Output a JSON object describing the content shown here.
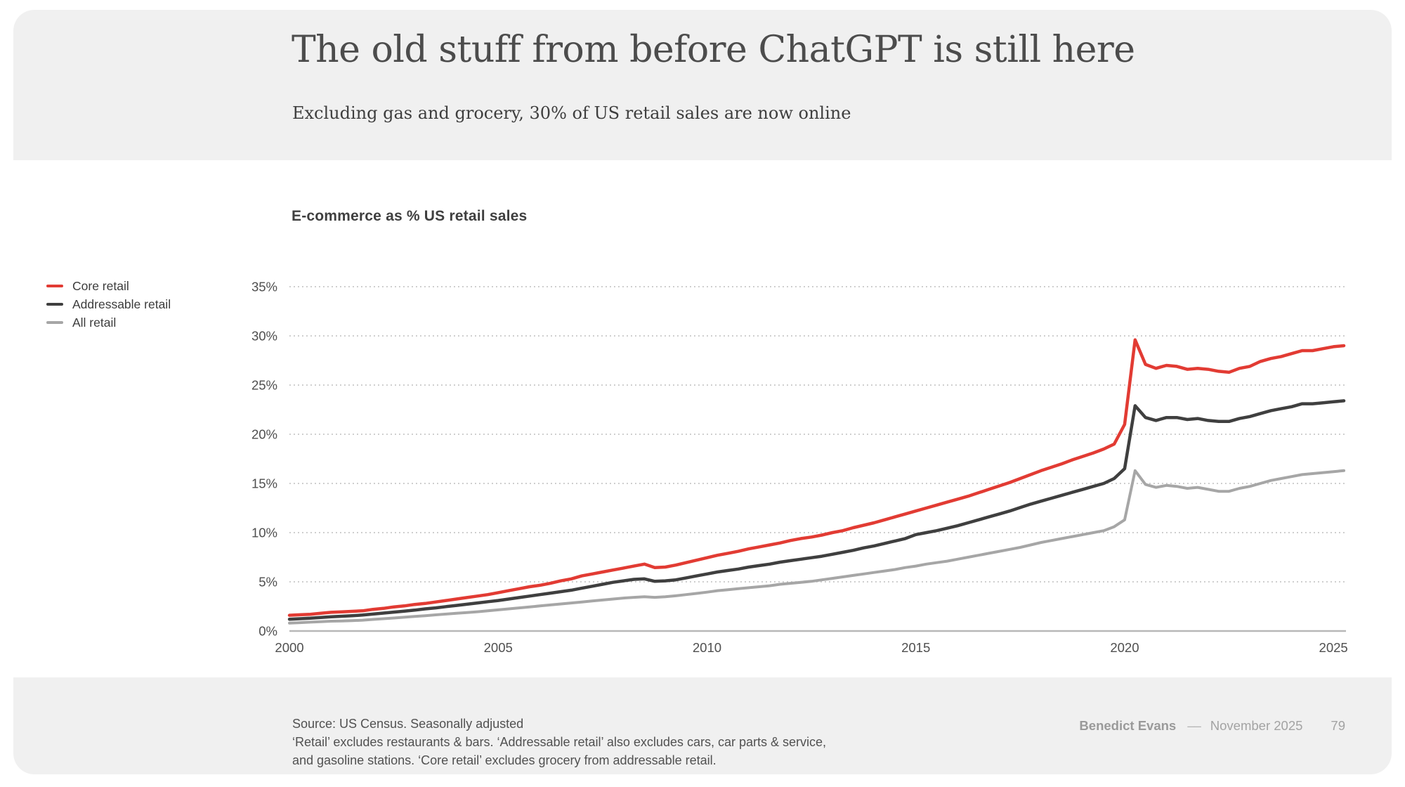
{
  "slide": {
    "title": "The old stuff from before ChatGPT is still here",
    "subtitle": "Excluding gas and grocery, 30% of US retail sales are now online"
  },
  "chart": {
    "heading": "E-commerce as % US retail sales"
  },
  "legend": {
    "items": [
      {
        "label": "Core retail",
        "color": "#e23b33"
      },
      {
        "label": "Addressable retail",
        "color": "#3f3f3f"
      },
      {
        "label": "All retail",
        "color": "#a6a6a6"
      }
    ]
  },
  "chart_data": {
    "type": "line",
    "title": "E-commerce as % US retail sales",
    "xlabel": "",
    "ylabel": "E-commerce as % US retail sales",
    "xlim": [
      2000,
      2025.25
    ],
    "ylim": [
      0,
      35
    ],
    "grid": "horizontal-dotted",
    "legend_position": "left",
    "x_ticks": [
      2000,
      2005,
      2010,
      2015,
      2020,
      2025
    ],
    "x_tick_labels": [
      "2000",
      "2005",
      "2010",
      "2015",
      "2020",
      "2025"
    ],
    "y_ticks": [
      0,
      5,
      10,
      15,
      20,
      25,
      30,
      35
    ],
    "y_tick_labels": [
      "0%",
      "5%",
      "10%",
      "15%",
      "20%",
      "25%",
      "30%",
      "35%"
    ],
    "x": [
      2000,
      2000.25,
      2000.5,
      2000.75,
      2001,
      2001.25,
      2001.5,
      2001.75,
      2002,
      2002.25,
      2002.5,
      2002.75,
      2003,
      2003.25,
      2003.5,
      2003.75,
      2004,
      2004.25,
      2004.5,
      2004.75,
      2005,
      2005.25,
      2005.5,
      2005.75,
      2006,
      2006.25,
      2006.5,
      2006.75,
      2007,
      2007.25,
      2007.5,
      2007.75,
      2008,
      2008.25,
      2008.5,
      2008.75,
      2009,
      2009.25,
      2009.5,
      2009.75,
      2010,
      2010.25,
      2010.5,
      2010.75,
      2011,
      2011.25,
      2011.5,
      2011.75,
      2012,
      2012.25,
      2012.5,
      2012.75,
      2013,
      2013.25,
      2013.5,
      2013.75,
      2014,
      2014.25,
      2014.5,
      2014.75,
      2015,
      2015.25,
      2015.5,
      2015.75,
      2016,
      2016.25,
      2016.5,
      2016.75,
      2017,
      2017.25,
      2017.5,
      2017.75,
      2018,
      2018.25,
      2018.5,
      2018.75,
      2019,
      2019.25,
      2019.5,
      2019.75,
      2020,
      2020.25,
      2020.5,
      2020.75,
      2021,
      2021.25,
      2021.5,
      2021.75,
      2022,
      2022.25,
      2022.5,
      2022.75,
      2023,
      2023.25,
      2023.5,
      2023.75,
      2024,
      2024.25,
      2024.5,
      2024.75,
      2025,
      2025.25
    ],
    "series": [
      {
        "name": "Core retail",
        "color": "#e23b33",
        "values": [
          1.6,
          1.65,
          1.7,
          1.8,
          1.9,
          1.95,
          2.0,
          2.05,
          2.2,
          2.3,
          2.45,
          2.55,
          2.7,
          2.8,
          2.95,
          3.1,
          3.25,
          3.4,
          3.55,
          3.7,
          3.9,
          4.1,
          4.3,
          4.5,
          4.65,
          4.85,
          5.1,
          5.3,
          5.6,
          5.8,
          6.0,
          6.2,
          6.4,
          6.6,
          6.8,
          6.45,
          6.5,
          6.7,
          6.95,
          7.2,
          7.45,
          7.7,
          7.9,
          8.1,
          8.35,
          8.55,
          8.75,
          8.95,
          9.2,
          9.4,
          9.55,
          9.75,
          10.0,
          10.2,
          10.5,
          10.75,
          11.0,
          11.3,
          11.6,
          11.9,
          12.2,
          12.5,
          12.8,
          13.1,
          13.4,
          13.7,
          14.05,
          14.4,
          14.75,
          15.1,
          15.5,
          15.9,
          16.3,
          16.65,
          17.0,
          17.4,
          17.75,
          18.1,
          18.5,
          19.0,
          21.0,
          29.6,
          27.1,
          26.7,
          27.0,
          26.9,
          26.6,
          26.7,
          26.6,
          26.4,
          26.3,
          26.7,
          26.9,
          27.4,
          27.7,
          27.9,
          28.2,
          28.5,
          28.5,
          28.7,
          28.9,
          29.0
        ]
      },
      {
        "name": "Addressable retail",
        "color": "#3f3f3f",
        "values": [
          1.2,
          1.25,
          1.3,
          1.38,
          1.45,
          1.5,
          1.55,
          1.62,
          1.72,
          1.82,
          1.92,
          2.02,
          2.12,
          2.25,
          2.35,
          2.48,
          2.6,
          2.72,
          2.85,
          2.98,
          3.1,
          3.25,
          3.4,
          3.55,
          3.7,
          3.85,
          4.0,
          4.15,
          4.35,
          4.55,
          4.75,
          4.95,
          5.1,
          5.25,
          5.3,
          5.05,
          5.1,
          5.2,
          5.4,
          5.6,
          5.8,
          6.0,
          6.15,
          6.3,
          6.5,
          6.65,
          6.8,
          7.0,
          7.15,
          7.3,
          7.45,
          7.6,
          7.8,
          8.0,
          8.2,
          8.45,
          8.65,
          8.9,
          9.15,
          9.4,
          9.8,
          10.0,
          10.2,
          10.45,
          10.7,
          11.0,
          11.3,
          11.6,
          11.9,
          12.2,
          12.55,
          12.9,
          13.2,
          13.5,
          13.8,
          14.1,
          14.4,
          14.7,
          15.0,
          15.5,
          16.5,
          22.9,
          21.7,
          21.4,
          21.7,
          21.7,
          21.5,
          21.6,
          21.4,
          21.3,
          21.3,
          21.6,
          21.8,
          22.1,
          22.4,
          22.6,
          22.8,
          23.1,
          23.1,
          23.2,
          23.3,
          23.4
        ]
      },
      {
        "name": "All retail",
        "color": "#a6a6a6",
        "values": [
          0.8,
          0.85,
          0.9,
          0.95,
          1.0,
          1.02,
          1.05,
          1.1,
          1.18,
          1.25,
          1.32,
          1.4,
          1.48,
          1.56,
          1.64,
          1.72,
          1.8,
          1.88,
          1.96,
          2.05,
          2.15,
          2.25,
          2.35,
          2.45,
          2.55,
          2.65,
          2.75,
          2.85,
          2.95,
          3.05,
          3.15,
          3.25,
          3.35,
          3.42,
          3.48,
          3.42,
          3.48,
          3.58,
          3.7,
          3.82,
          3.95,
          4.1,
          4.2,
          4.3,
          4.4,
          4.5,
          4.6,
          4.75,
          4.85,
          4.95,
          5.05,
          5.2,
          5.35,
          5.5,
          5.65,
          5.8,
          5.95,
          6.1,
          6.25,
          6.45,
          6.6,
          6.8,
          6.95,
          7.1,
          7.3,
          7.5,
          7.7,
          7.9,
          8.1,
          8.3,
          8.5,
          8.75,
          9.0,
          9.2,
          9.4,
          9.6,
          9.8,
          10.0,
          10.2,
          10.6,
          11.3,
          16.3,
          14.9,
          14.6,
          14.8,
          14.7,
          14.5,
          14.6,
          14.4,
          14.2,
          14.2,
          14.5,
          14.7,
          15.0,
          15.3,
          15.5,
          15.7,
          15.9,
          16.0,
          16.1,
          16.2,
          16.3
        ]
      }
    ]
  },
  "footer": {
    "source_lines": [
      "Source: US Census. Seasonally adjusted",
      "‘Retail’ excludes restaurants & bars. ‘Addressable retail’ also excludes cars, car parts & service,",
      "and gasoline stations. ‘Core retail’ excludes grocery from addressable retail."
    ],
    "credit": {
      "author": "Benedict Evans",
      "separator": "––",
      "date": "November 2025",
      "page": "79"
    }
  },
  "colors": {
    "band": "#f0f0f0",
    "axis": "#b8b8b8",
    "gridline": "#c2c2c2",
    "tick_text": "#4f4f4f"
  }
}
